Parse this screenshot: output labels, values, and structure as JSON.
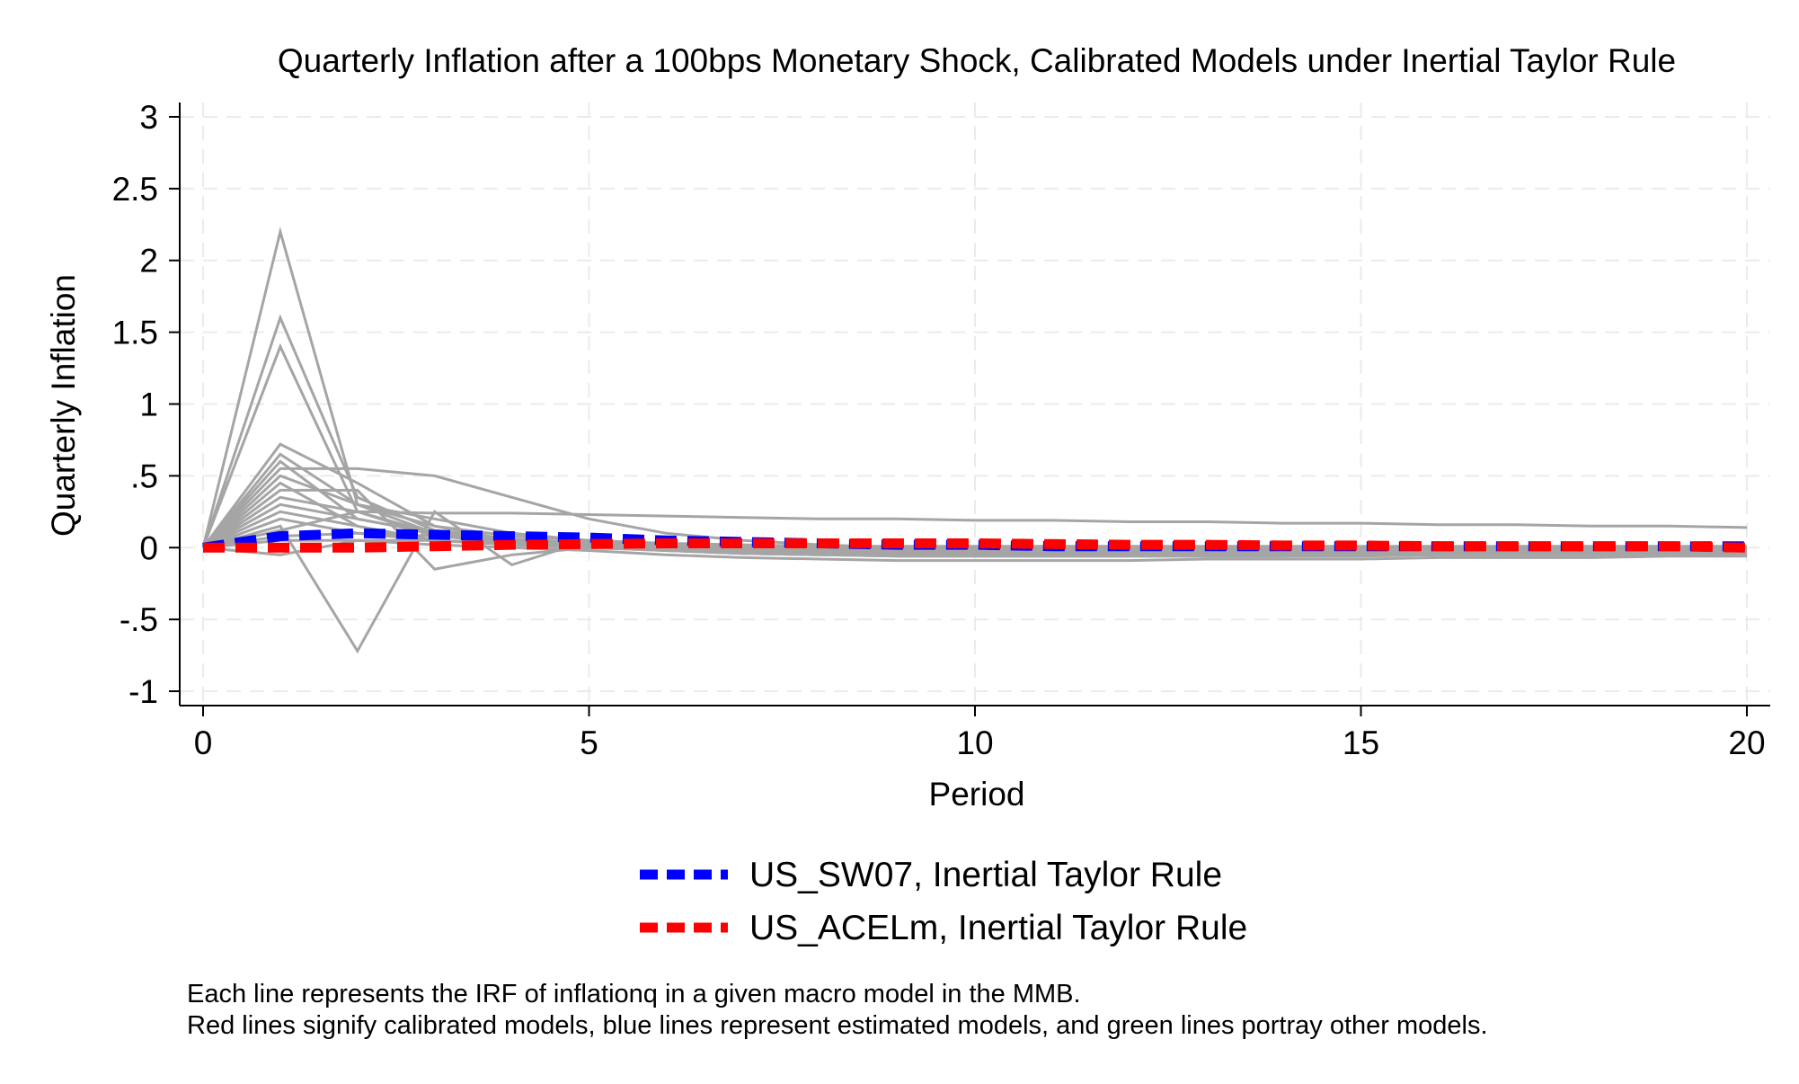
{
  "chart_data": {
    "type": "line",
    "title": "Quarterly Inflation after a 100bps Monetary Shock, Calibrated Models under Inertial Taylor Rule",
    "xlabel": "Period",
    "ylabel": "Quarterly Inflation",
    "xlim": [
      0,
      20
    ],
    "ylim": [
      -1.1,
      3.1
    ],
    "x_ticks": [
      0,
      5,
      10,
      15,
      20
    ],
    "x_tick_labels": [
      "0",
      "5",
      "10",
      "15",
      "20"
    ],
    "y_ticks": [
      -1,
      -0.5,
      0,
      0.5,
      1,
      1.5,
      2,
      2.5,
      3
    ],
    "y_tick_labels": [
      "-1",
      "-.5",
      "0",
      ".5",
      "1",
      "1.5",
      "2",
      "2.5",
      "3"
    ],
    "grid": true,
    "legend_position": "bottom",
    "colors": {
      "other_models": "#a5a5a5",
      "US_SW07": "#0000ff",
      "US_ACELm": "#ff0000",
      "grid": "#ebebeb"
    },
    "x": [
      0,
      1,
      2,
      3,
      4,
      5,
      6,
      7,
      8,
      9,
      10,
      11,
      12,
      13,
      14,
      15,
      16,
      17,
      18,
      19,
      20
    ],
    "highlight_series": [
      {
        "name": "US_SW07, Inertial Taylor Rule",
        "color": "#0000ff",
        "values": [
          0,
          0.08,
          0.1,
          0.09,
          0.08,
          0.07,
          0.05,
          0.04,
          0.03,
          0.02,
          0.02,
          0.01,
          0.01,
          0.01,
          0.01,
          0.01,
          0.01,
          0.01,
          0.01,
          0.01,
          0.01
        ]
      },
      {
        "name": "US_ACELm, Inertial Taylor Rule",
        "color": "#ff0000",
        "values": [
          0,
          0,
          0,
          0.01,
          0.02,
          0.025,
          0.03,
          0.03,
          0.03,
          0.03,
          0.03,
          0.025,
          0.02,
          0.02,
          0.015,
          0.015,
          0.01,
          0.01,
          0.01,
          0.01,
          0.0
        ]
      }
    ],
    "other_series": [
      {
        "values": [
          0,
          2.2,
          0.3,
          0.1,
          0.05,
          0.02,
          -0.02,
          -0.04,
          -0.05,
          -0.06,
          -0.06,
          -0.06,
          -0.06,
          -0.06,
          -0.06,
          -0.06,
          -0.05,
          -0.05,
          -0.05,
          -0.05,
          -0.05
        ]
      },
      {
        "values": [
          0,
          1.6,
          0.35,
          0.12,
          0.06,
          0.03,
          0,
          -0.02,
          -0.03,
          -0.03,
          -0.03,
          -0.03,
          -0.03,
          -0.03,
          -0.03,
          -0.03,
          -0.03,
          -0.03,
          -0.03,
          -0.03,
          -0.03
        ]
      },
      {
        "values": [
          0,
          1.4,
          0.25,
          0.08,
          0.04,
          0.02,
          0,
          -0.01,
          -0.02,
          -0.02,
          -0.02,
          -0.02,
          -0.02,
          -0.02,
          -0.02,
          -0.02,
          -0.02,
          -0.02,
          -0.02,
          -0.02,
          -0.02
        ]
      },
      {
        "values": [
          0,
          0.72,
          0.45,
          0.15,
          0.05,
          0.02,
          0,
          -0.02,
          -0.03,
          -0.04,
          -0.04,
          -0.04,
          -0.04,
          -0.04,
          -0.04,
          -0.04,
          -0.04,
          -0.04,
          -0.04,
          -0.04,
          -0.04
        ]
      },
      {
        "values": [
          0,
          0.65,
          0.3,
          0.2,
          0.1,
          0.05,
          0.02,
          0,
          -0.01,
          -0.01,
          -0.01,
          -0.01,
          -0.01,
          -0.01,
          -0.01,
          -0.01,
          -0.01,
          -0.01,
          -0.01,
          -0.01,
          -0.01
        ]
      },
      {
        "values": [
          0,
          0.6,
          0.2,
          0.1,
          0.05,
          0.02,
          0,
          -0.01,
          -0.01,
          -0.01,
          -0.01,
          -0.01,
          -0.01,
          -0.01,
          -0.01,
          -0.01,
          -0.01,
          -0.01,
          -0.01,
          -0.01,
          -0.01
        ]
      },
      {
        "values": [
          0,
          0.55,
          0.55,
          0.5,
          0.35,
          0.2,
          0.1,
          0.05,
          0.02,
          0,
          0,
          0,
          0,
          0,
          0,
          0,
          0,
          0,
          0,
          0,
          0
        ]
      },
      {
        "values": [
          0,
          0.5,
          0.3,
          0.15,
          0.08,
          0.05,
          0.03,
          0.02,
          0.01,
          0.01,
          0.01,
          0.01,
          0.01,
          0.01,
          0.01,
          0.01,
          0.01,
          0.01,
          0.01,
          0.01,
          0.01
        ]
      },
      {
        "values": [
          0,
          0.45,
          0.15,
          0.05,
          0.02,
          0,
          -0.02,
          -0.03,
          -0.04,
          -0.04,
          -0.04,
          -0.04,
          -0.04,
          -0.04,
          -0.04,
          -0.04,
          -0.04,
          -0.04,
          -0.04,
          -0.04,
          -0.04
        ]
      },
      {
        "values": [
          0,
          0.4,
          0.4,
          -0.15,
          -0.05,
          0,
          -0.02,
          -0.04,
          -0.05,
          -0.05,
          -0.05,
          -0.05,
          -0.05,
          -0.05,
          -0.05,
          -0.05,
          -0.05,
          -0.05,
          -0.05,
          -0.05,
          -0.05
        ]
      },
      {
        "values": [
          0,
          0.35,
          0.25,
          0.1,
          0.05,
          0.03,
          0.01,
          0,
          0,
          0,
          0,
          0,
          0,
          0,
          0,
          0,
          0,
          0,
          0,
          0,
          0
        ]
      },
      {
        "values": [
          0,
          0.3,
          0.2,
          0.1,
          0.05,
          0.02,
          0.01,
          0,
          0,
          0,
          0,
          0,
          0,
          0,
          0,
          0,
          0,
          0,
          0,
          0,
          0
        ]
      },
      {
        "values": [
          0,
          0.25,
          0.15,
          0.05,
          0.03,
          0.01,
          0,
          0,
          0,
          0,
          0,
          0,
          0,
          0,
          0,
          0,
          0,
          0,
          0,
          0,
          0
        ]
      },
      {
        "values": [
          0,
          0.2,
          0.1,
          0.05,
          0.03,
          0.02,
          0.01,
          0,
          0,
          0,
          0,
          0,
          0,
          0,
          0,
          0,
          0,
          0,
          0,
          0,
          0
        ]
      },
      {
        "values": [
          0,
          0.15,
          -0.72,
          0.25,
          -0.12,
          0.05,
          0.02,
          0,
          -0.02,
          -0.03,
          -0.04,
          -0.04,
          -0.04,
          -0.04,
          -0.04,
          -0.04,
          -0.04,
          -0.04,
          -0.04,
          -0.04,
          -0.04
        ]
      },
      {
        "values": [
          0,
          0.12,
          0.25,
          0.24,
          0.24,
          0.23,
          0.22,
          0.21,
          0.2,
          0.2,
          0.19,
          0.19,
          0.18,
          0.18,
          0.17,
          0.17,
          0.16,
          0.16,
          0.15,
          0.15,
          0.14
        ]
      },
      {
        "values": [
          0,
          0.08,
          0.1,
          0.08,
          0.05,
          0.02,
          -0.02,
          -0.04,
          -0.05,
          -0.06,
          -0.06,
          -0.06,
          -0.06,
          -0.06,
          -0.06,
          -0.05,
          -0.05,
          -0.05,
          -0.05,
          -0.05,
          -0.05
        ]
      },
      {
        "values": [
          0,
          0.05,
          0.05,
          0.02,
          0,
          -0.02,
          -0.05,
          -0.07,
          -0.08,
          -0.09,
          -0.09,
          -0.09,
          -0.09,
          -0.08,
          -0.08,
          -0.08,
          -0.07,
          -0.07,
          -0.07,
          -0.06,
          -0.06
        ]
      },
      {
        "values": [
          0,
          -0.05,
          0.05,
          0.05,
          0.03,
          0.01,
          -0.01,
          -0.02,
          -0.03,
          -0.03,
          -0.03,
          -0.03,
          -0.03,
          -0.03,
          -0.03,
          -0.03,
          -0.03,
          -0.03,
          -0.03,
          -0.03,
          -0.03
        ]
      }
    ],
    "notes": [
      "Each line represents the IRF of inflationq in a given macro model in the MMB.",
      "Red lines signify calibrated models, blue lines represent estimated models, and green lines portray other models."
    ]
  }
}
